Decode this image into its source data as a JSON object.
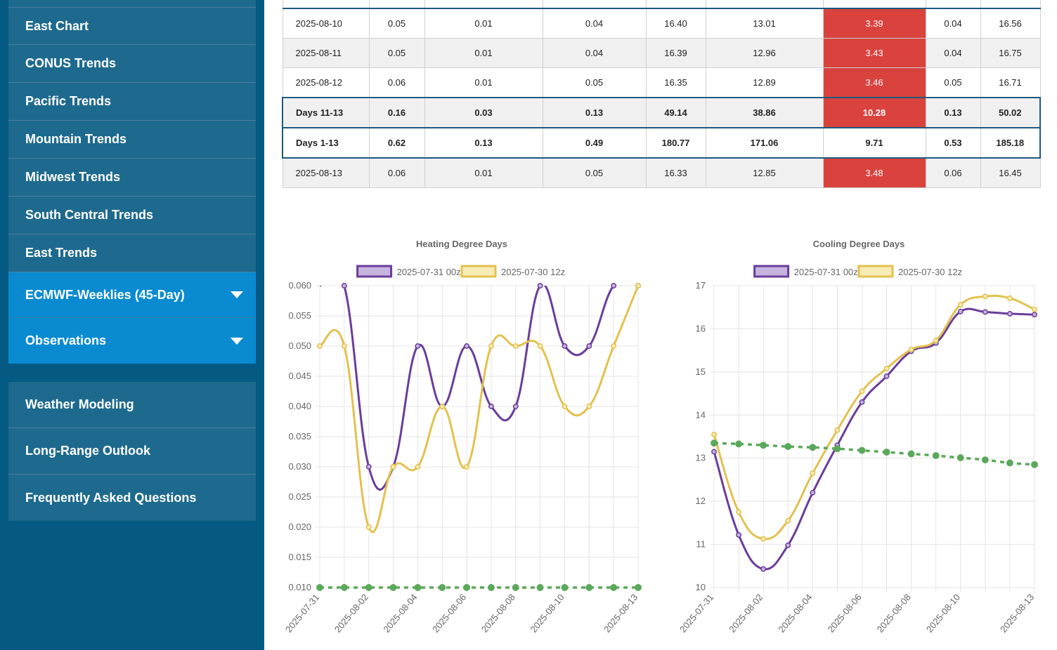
{
  "sidebar": {
    "primary": [
      {
        "label": "East Chart"
      },
      {
        "label": "CONUS Trends"
      },
      {
        "label": "Pacific Trends"
      },
      {
        "label": "Mountain Trends"
      },
      {
        "label": "Midwest Trends"
      },
      {
        "label": "South Central Trends"
      },
      {
        "label": "East Trends"
      }
    ],
    "expandable": [
      {
        "label": "ECMWF-Weeklies (45-Day)"
      },
      {
        "label": "Observations"
      }
    ],
    "secondary": [
      {
        "label": "Weather Modeling"
      },
      {
        "label": "Long-Range Outlook"
      },
      {
        "label": "Frequently Asked Questions"
      }
    ]
  },
  "table": {
    "rows": [
      {
        "label": "2025-08-10",
        "cells": [
          "0.05",
          "0.01",
          "0.04",
          "16.40",
          "13.01",
          "3.39",
          "0.04",
          "16.56"
        ]
      },
      {
        "label": "2025-08-11",
        "cells": [
          "0.05",
          "0.01",
          "0.04",
          "16.39",
          "12.96",
          "3.43",
          "0.04",
          "16.75"
        ]
      },
      {
        "label": "2025-08-12",
        "cells": [
          "0.06",
          "0.01",
          "0.05",
          "16.35",
          "12.89",
          "3.46",
          "0.05",
          "16.71"
        ]
      },
      {
        "label": "Days 11-13",
        "cells": [
          "0.16",
          "0.03",
          "0.13",
          "49.14",
          "38.86",
          "10.28",
          "0.13",
          "50.02"
        ]
      },
      {
        "label": "Days 1-13",
        "cells": [
          "0.62",
          "0.13",
          "0.49",
          "180.77",
          "171.06",
          "9.71",
          "0.53",
          "185.18"
        ]
      },
      {
        "label": "2025-08-13",
        "cells": [
          "0.06",
          "0.01",
          "0.05",
          "16.33",
          "12.85",
          "3.48",
          "0.06",
          "16.45"
        ]
      }
    ]
  },
  "colors": {
    "sidebar_bg": "#045a82",
    "nav_item": "#1e6a8e",
    "nav_accent": "#0a8bd1",
    "highlight": "#d9423d",
    "purple": "#6a3d9a",
    "gold": "#e3c14f",
    "green": "#5ba85a"
  },
  "chart_data": [
    {
      "type": "line",
      "title": "Heating Degree Days",
      "x": [
        "2025-07-31",
        "2025-08-01",
        "2025-08-02",
        "2025-08-03",
        "2025-08-04",
        "2025-08-05",
        "2025-08-06",
        "2025-08-07",
        "2025-08-08",
        "2025-08-09",
        "2025-08-10",
        "2025-08-11",
        "2025-08-12",
        "2025-08-13"
      ],
      "x_tick_labels": [
        "2025-07-31",
        "2025-08-02",
        "2025-08-04",
        "2025-08-06",
        "2025-08-08",
        "2025-08-10",
        "2025-08-13"
      ],
      "ylim": [
        0.01,
        0.06
      ],
      "y_ticks": [
        "0.010",
        "0.015",
        "0.020",
        "0.025",
        "0.030",
        "0.035",
        "0.040",
        "0.045",
        "0.050",
        "0.055",
        "0.060"
      ],
      "series": [
        {
          "name": "2025-07-31 00z",
          "values": [
            null,
            0.06,
            0.03,
            0.03,
            0.05,
            0.04,
            0.05,
            0.04,
            0.04,
            0.06,
            0.05,
            0.05,
            0.06,
            0.06
          ]
        },
        {
          "name": "2025-07-30 12z",
          "values": [
            0.05,
            0.05,
            0.02,
            0.03,
            0.03,
            0.04,
            0.03,
            0.05,
            0.05,
            0.05,
            0.04,
            0.04,
            0.05,
            0.06
          ]
        },
        {
          "values": [
            0.01,
            0.01,
            0.01,
            0.01,
            0.01,
            0.01,
            0.01,
            0.01,
            0.01,
            0.01,
            0.01,
            0.01,
            0.01,
            0.01
          ]
        }
      ],
      "grid": true,
      "legend": "top"
    },
    {
      "type": "line",
      "title": "Cooling Degree Days",
      "x": [
        "2025-07-31",
        "2025-08-01",
        "2025-08-02",
        "2025-08-03",
        "2025-08-04",
        "2025-08-05",
        "2025-08-06",
        "2025-08-07",
        "2025-08-08",
        "2025-08-09",
        "2025-08-10",
        "2025-08-11",
        "2025-08-12",
        "2025-08-13"
      ],
      "x_tick_labels": [
        "2025-07-31",
        "2025-08-02",
        "2025-08-04",
        "2025-08-06",
        "2025-08-08",
        "2025-08-10",
        "2025-08-13"
      ],
      "ylim": [
        10,
        17
      ],
      "y_ticks": [
        "10",
        "11",
        "12",
        "13",
        "14",
        "15",
        "16",
        "17"
      ],
      "series": [
        {
          "name": "2025-07-31 00z",
          "values": [
            13.15,
            11.22,
            10.43,
            10.98,
            12.2,
            13.3,
            14.3,
            14.9,
            15.48,
            15.67,
            16.4,
            16.39,
            16.35,
            16.33
          ]
        },
        {
          "name": "2025-07-30 12z",
          "values": [
            13.55,
            11.75,
            11.13,
            11.55,
            12.65,
            13.65,
            14.55,
            15.08,
            15.52,
            15.73,
            16.56,
            16.75,
            16.71,
            16.45
          ]
        },
        {
          "values": [
            13.35,
            13.33,
            13.3,
            13.27,
            13.25,
            13.22,
            13.18,
            13.14,
            13.1,
            13.06,
            13.01,
            12.96,
            12.89,
            12.85
          ]
        }
      ],
      "grid": true,
      "legend": "top"
    }
  ]
}
